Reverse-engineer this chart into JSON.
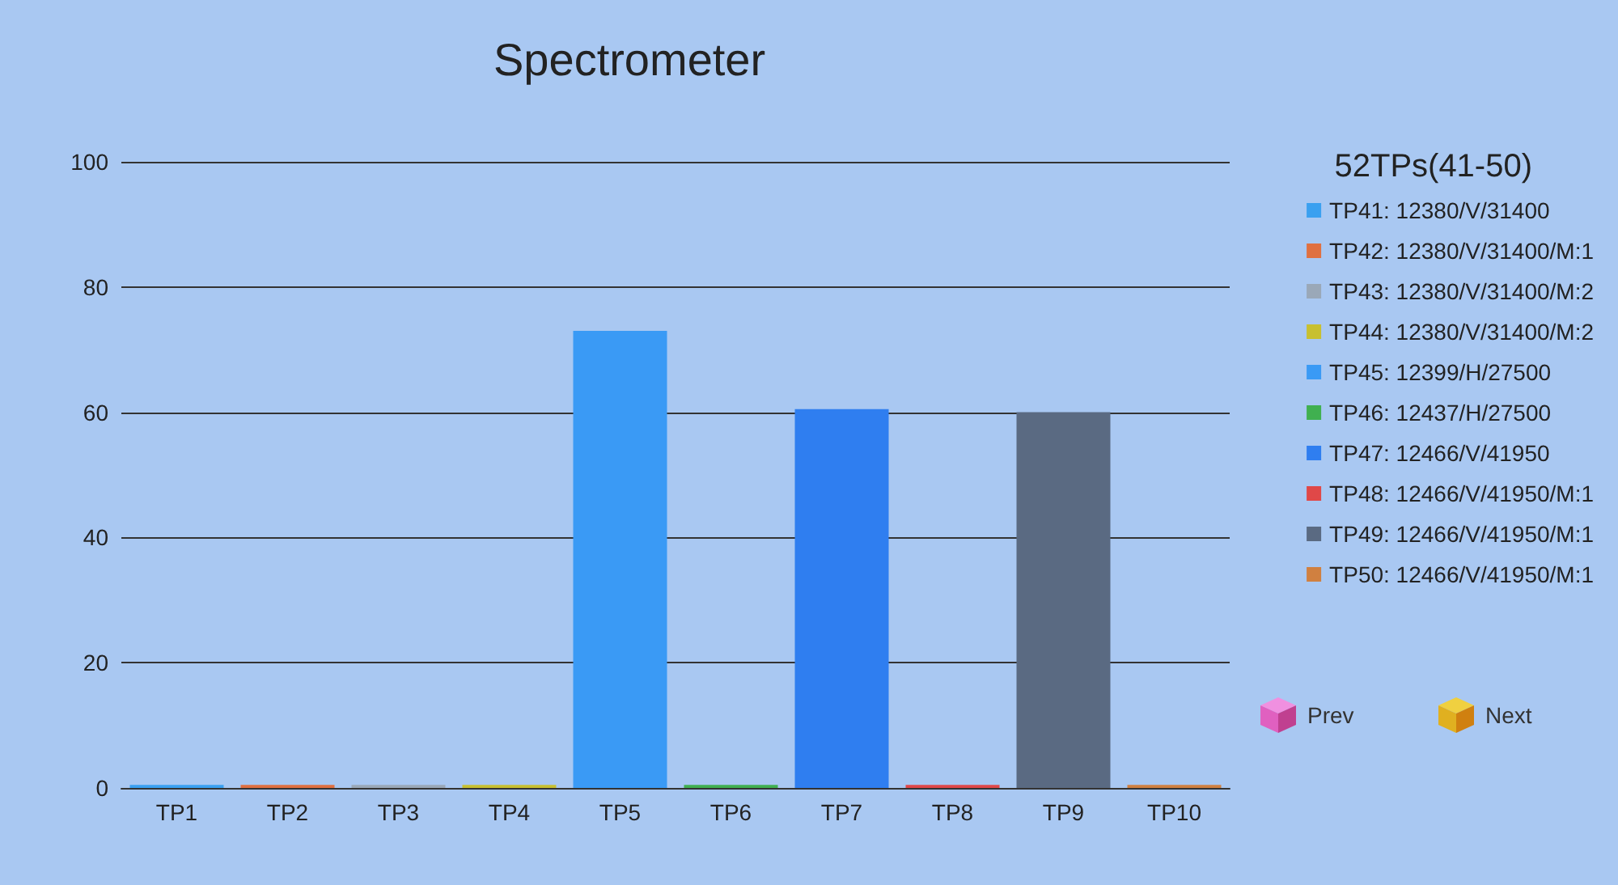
{
  "chart_data": {
    "type": "bar",
    "title": "Spectrometer",
    "subtitle": "52TPs(41-50)",
    "categories": [
      "TP1",
      "TP2",
      "TP3",
      "TP4",
      "TP5",
      "TP6",
      "TP7",
      "TP8",
      "TP9",
      "TP10"
    ],
    "series": [
      {
        "name": "TP41: 12380/V/31400",
        "color": "#3aa0f0",
        "values": [
          0.5,
          null,
          null,
          null,
          null,
          null,
          null,
          null,
          null,
          null
        ]
      },
      {
        "name": "TP42: 12380/V/31400/M:1",
        "color": "#e07040",
        "values": [
          null,
          0.5,
          null,
          null,
          null,
          null,
          null,
          null,
          null,
          null
        ]
      },
      {
        "name": "TP43: 12380/V/31400/M:2",
        "color": "#9aa8b8",
        "values": [
          null,
          null,
          0.5,
          null,
          null,
          null,
          null,
          null,
          null,
          null
        ]
      },
      {
        "name": "TP44: 12380/V/31400/M:2",
        "color": "#c8c030",
        "values": [
          null,
          null,
          null,
          0.5,
          null,
          null,
          null,
          null,
          null,
          null
        ]
      },
      {
        "name": "TP45: 12399/H/27500",
        "color": "#3a9af5",
        "values": [
          null,
          null,
          null,
          null,
          73,
          null,
          null,
          null,
          null,
          null
        ]
      },
      {
        "name": "TP46: 12437/H/27500",
        "color": "#40b050",
        "values": [
          null,
          null,
          null,
          null,
          null,
          0.5,
          null,
          null,
          null,
          null
        ]
      },
      {
        "name": "TP47: 12466/V/41950",
        "color": "#2f7ef0",
        "values": [
          null,
          null,
          null,
          null,
          null,
          null,
          60.5,
          null,
          null,
          null
        ]
      },
      {
        "name": "TP48: 12466/V/41950/M:1",
        "color": "#e04848",
        "values": [
          null,
          null,
          null,
          null,
          null,
          null,
          null,
          0.5,
          null,
          null
        ]
      },
      {
        "name": "TP49: 12466/V/41950/M:1",
        "color": "#5a6a82",
        "values": [
          null,
          null,
          null,
          null,
          null,
          null,
          null,
          null,
          60,
          null
        ]
      },
      {
        "name": "TP50: 12466/V/41950/M:1",
        "color": "#d08040",
        "values": [
          null,
          null,
          null,
          null,
          null,
          null,
          null,
          null,
          null,
          0.5
        ]
      }
    ],
    "stacked": true,
    "ylim": [
      0,
      100
    ],
    "yticks": [
      0,
      20,
      40,
      60,
      80,
      100
    ],
    "grid": "y",
    "legend": "right",
    "annotations": [
      "Prev",
      "Next"
    ]
  }
}
